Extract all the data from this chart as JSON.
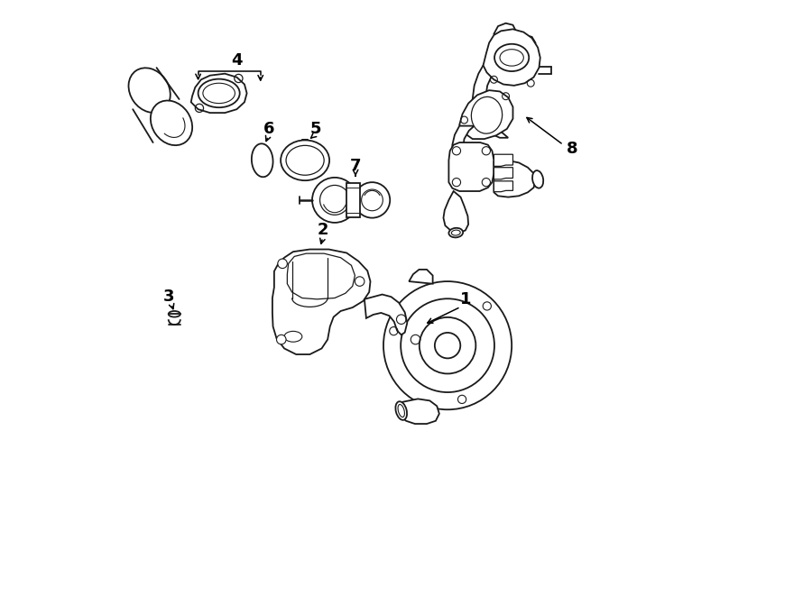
{
  "bg_color": "#ffffff",
  "line_color": "#1a1a1a",
  "fig_width": 9.0,
  "fig_height": 6.61,
  "dpi": 100,
  "lw": 1.3,
  "label_fontsize": 13
}
